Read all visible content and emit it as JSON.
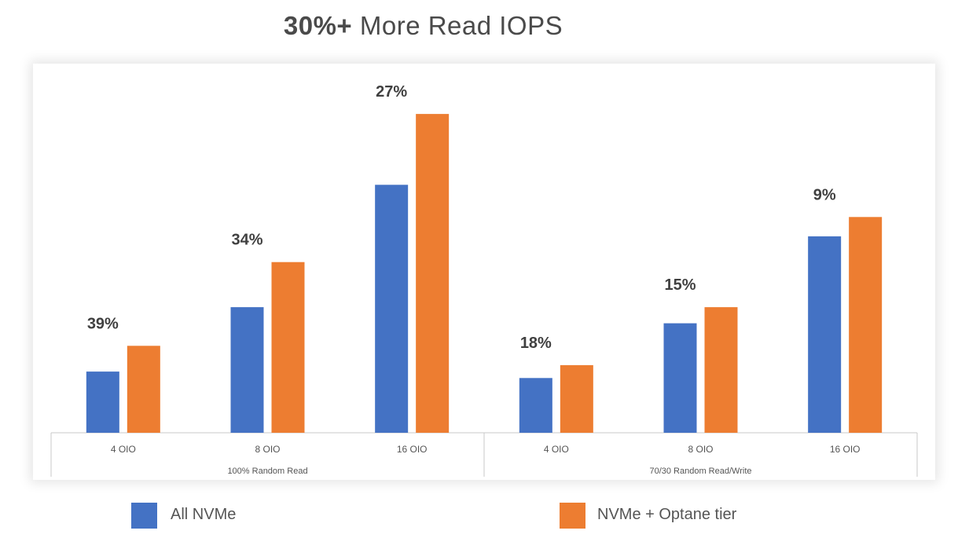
{
  "title": {
    "bold": "30%+",
    "rest": " More Read IOPS"
  },
  "colors": {
    "all_nvme": "#4472C4",
    "nvme_optane": "#ED7D31",
    "text": "#404040",
    "axis": "#c8c8c8"
  },
  "legend": [
    {
      "label": "All NVMe",
      "color": "#4472C4"
    },
    {
      "label": "NVMe + Optane tier",
      "color": "#ED7D31"
    }
  ],
  "chart_data": {
    "type": "bar",
    "title": "30%+ More Read IOPS",
    "xlabel": "",
    "ylabel": "",
    "ylim": [
      0,
      100
    ],
    "grid": false,
    "legend_position": "bottom",
    "groups": [
      {
        "label": "100% Random Read",
        "categories": [
          "4 OIO",
          "8 OIO",
          "16 OIO"
        ]
      },
      {
        "label": "70/30 Random Read/Write",
        "categories": [
          "4 OIO",
          "8 OIO",
          "16 OIO"
        ]
      }
    ],
    "categories": [
      "4 OIO",
      "8 OIO",
      "16 OIO",
      "4 OIO",
      "8 OIO",
      "16 OIO"
    ],
    "series": [
      {
        "name": "All NVMe",
        "values": [
          19,
          39,
          77,
          17,
          34,
          61
        ]
      },
      {
        "name": "NVMe + Optane tier",
        "values": [
          27,
          53,
          99,
          21,
          39,
          67
        ]
      }
    ],
    "annotations": [
      "39%",
      "34%",
      "27%",
      "18%",
      "15%",
      "9%"
    ]
  }
}
